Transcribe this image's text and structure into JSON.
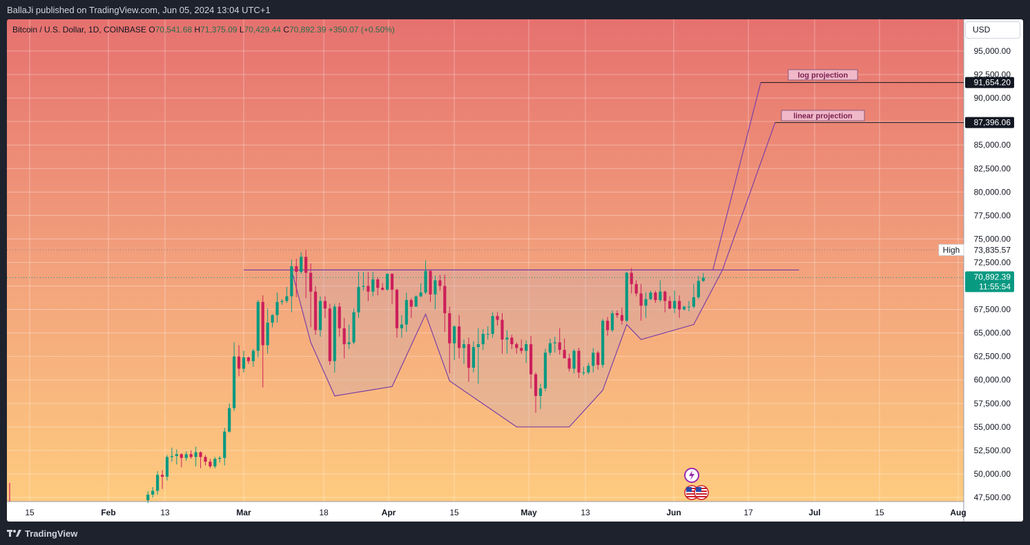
{
  "header": {
    "published_text": "BallaJi published on TradingView.com, Jun 05, 2024 13:04 UTC+1"
  },
  "footer": {
    "brand": "TradingView"
  },
  "legend": {
    "symbol": "Bitcoin / U.S. Dollar, 1D, COINBASE",
    "o_label": "O",
    "o_value": "70,541.68",
    "h_label": "H",
    "h_value": "71,375.09",
    "l_label": "L",
    "l_value": "70,429.44",
    "c_label": "C",
    "c_value": "70,892.39",
    "change": "+350.07 (+0.50%)"
  },
  "currency_button": "USD",
  "price_scale": {
    "ticks": [
      "95,000.00",
      "92,500.00",
      "90,000.00",
      "87,500.00",
      "85,000.00",
      "82,500.00",
      "80,000.00",
      "77,500.00",
      "75,000.00",
      "72,500.00",
      "70,000.00",
      "67,500.00",
      "65,000.00",
      "62,500.00",
      "60,000.00",
      "57,500.00",
      "55,000.00",
      "52,500.00",
      "50,000.00",
      "47,500.00"
    ],
    "high_label": "High",
    "high_value": "73,835.57",
    "last_price": "70,892.39",
    "countdown": "11:55:54",
    "log_target": "91,654.20",
    "linear_target": "87,396.06"
  },
  "time_scale": {
    "ticks": [
      "15",
      "Feb",
      "13",
      "Mar",
      "18",
      "Apr",
      "15",
      "May",
      "13",
      "Jun",
      "17",
      "Jul",
      "15",
      "Aug"
    ]
  },
  "annotations": {
    "log_label": "log projection",
    "linear_label": "linear projection"
  },
  "colors": {
    "up": "#089981",
    "down": "#cc1f5a",
    "pattern_line": "#7b3fa6",
    "bg_top": "#e6716f",
    "bg_bottom": "#fecb7f"
  },
  "chart_data": {
    "type": "candlestick",
    "title": "Bitcoin / U.S. Dollar, 1D, COINBASE",
    "y_scale": "linear",
    "ylim": [
      47500,
      95000
    ],
    "candles": [
      {
        "date": "2024-02-10",
        "o": 47200,
        "h": 48150,
        "l": 46900,
        "c": 47800
      },
      {
        "date": "2024-02-11",
        "o": 47800,
        "h": 48600,
        "l": 47500,
        "c": 48200
      },
      {
        "date": "2024-02-12",
        "o": 48200,
        "h": 50300,
        "l": 47800,
        "c": 49900
      },
      {
        "date": "2024-02-13",
        "o": 49900,
        "h": 50400,
        "l": 48400,
        "c": 49700
      },
      {
        "date": "2024-02-14",
        "o": 49700,
        "h": 52000,
        "l": 49300,
        "c": 51800
      },
      {
        "date": "2024-02-15",
        "o": 51800,
        "h": 52800,
        "l": 51300,
        "c": 51900
      },
      {
        "date": "2024-02-16",
        "o": 51900,
        "h": 52600,
        "l": 51000,
        "c": 52100
      },
      {
        "date": "2024-02-17",
        "o": 52100,
        "h": 52200,
        "l": 50700,
        "c": 51700
      },
      {
        "date": "2024-02-18",
        "o": 51700,
        "h": 52400,
        "l": 51400,
        "c": 52100
      },
      {
        "date": "2024-02-19",
        "o": 52100,
        "h": 52500,
        "l": 51600,
        "c": 51800
      },
      {
        "date": "2024-02-20",
        "o": 51800,
        "h": 52900,
        "l": 50800,
        "c": 52300
      },
      {
        "date": "2024-02-21",
        "o": 52300,
        "h": 52400,
        "l": 50600,
        "c": 51800
      },
      {
        "date": "2024-02-22",
        "o": 51800,
        "h": 52000,
        "l": 50900,
        "c": 51300
      },
      {
        "date": "2024-02-23",
        "o": 51300,
        "h": 51600,
        "l": 50600,
        "c": 50800
      },
      {
        "date": "2024-02-24",
        "o": 50800,
        "h": 51800,
        "l": 50600,
        "c": 51600
      },
      {
        "date": "2024-02-25",
        "o": 51600,
        "h": 51900,
        "l": 51200,
        "c": 51700
      },
      {
        "date": "2024-02-26",
        "o": 51700,
        "h": 54900,
        "l": 50900,
        "c": 54500
      },
      {
        "date": "2024-02-27",
        "o": 54500,
        "h": 57500,
        "l": 54400,
        "c": 57000
      },
      {
        "date": "2024-02-28",
        "o": 57000,
        "h": 64000,
        "l": 56700,
        "c": 62500
      },
      {
        "date": "2024-02-29",
        "o": 62500,
        "h": 63700,
        "l": 60400,
        "c": 61200
      },
      {
        "date": "2024-03-01",
        "o": 61200,
        "h": 63100,
        "l": 60800,
        "c": 62400
      },
      {
        "date": "2024-03-02",
        "o": 62400,
        "h": 62500,
        "l": 61700,
        "c": 62000
      },
      {
        "date": "2024-03-03",
        "o": 62000,
        "h": 63300,
        "l": 61400,
        "c": 63100
      },
      {
        "date": "2024-03-04",
        "o": 63100,
        "h": 68500,
        "l": 62400,
        "c": 68300
      },
      {
        "date": "2024-03-05",
        "o": 68300,
        "h": 69000,
        "l": 59200,
        "c": 63700
      },
      {
        "date": "2024-03-06",
        "o": 63700,
        "h": 67600,
        "l": 62800,
        "c": 66100
      },
      {
        "date": "2024-03-07",
        "o": 66100,
        "h": 67000,
        "l": 65600,
        "c": 66900
      },
      {
        "date": "2024-03-08",
        "o": 66900,
        "h": 69300,
        "l": 66100,
        "c": 68300
      },
      {
        "date": "2024-03-09",
        "o": 68300,
        "h": 68600,
        "l": 68000,
        "c": 68400
      },
      {
        "date": "2024-03-10",
        "o": 68400,
        "h": 69900,
        "l": 68200,
        "c": 68900
      },
      {
        "date": "2024-03-11",
        "o": 68900,
        "h": 72800,
        "l": 67200,
        "c": 72100
      },
      {
        "date": "2024-03-12",
        "o": 72100,
        "h": 72900,
        "l": 68800,
        "c": 71500
      },
      {
        "date": "2024-03-13",
        "o": 71500,
        "h": 73600,
        "l": 71300,
        "c": 73100
      },
      {
        "date": "2024-03-14",
        "o": 73100,
        "h": 73835.57,
        "l": 68700,
        "c": 71400
      },
      {
        "date": "2024-03-15",
        "o": 71400,
        "h": 72400,
        "l": 65600,
        "c": 69400
      },
      {
        "date": "2024-03-16",
        "o": 69400,
        "h": 70000,
        "l": 64800,
        "c": 65300
      },
      {
        "date": "2024-03-17",
        "o": 65300,
        "h": 68900,
        "l": 64600,
        "c": 68400
      },
      {
        "date": "2024-03-18",
        "o": 68400,
        "h": 68900,
        "l": 66600,
        "c": 67600
      },
      {
        "date": "2024-03-19",
        "o": 67600,
        "h": 68100,
        "l": 61600,
        "c": 62000
      },
      {
        "date": "2024-03-20",
        "o": 62000,
        "h": 68100,
        "l": 60800,
        "c": 67800
      },
      {
        "date": "2024-03-21",
        "o": 67800,
        "h": 68200,
        "l": 64600,
        "c": 65500
      },
      {
        "date": "2024-03-22",
        "o": 65500,
        "h": 66600,
        "l": 62300,
        "c": 63800
      },
      {
        "date": "2024-03-23",
        "o": 63800,
        "h": 65900,
        "l": 63300,
        "c": 64000
      },
      {
        "date": "2024-03-24",
        "o": 64000,
        "h": 67600,
        "l": 63800,
        "c": 67200
      },
      {
        "date": "2024-03-25",
        "o": 67200,
        "h": 71500,
        "l": 66600,
        "c": 69900
      },
      {
        "date": "2024-03-26",
        "o": 69900,
        "h": 71500,
        "l": 69500,
        "c": 70000
      },
      {
        "date": "2024-03-27",
        "o": 70000,
        "h": 71500,
        "l": 68400,
        "c": 69400
      },
      {
        "date": "2024-03-28",
        "o": 69400,
        "h": 71500,
        "l": 68900,
        "c": 70700
      },
      {
        "date": "2024-03-29",
        "o": 70700,
        "h": 70900,
        "l": 69000,
        "c": 69800
      },
      {
        "date": "2024-03-30",
        "o": 69800,
        "h": 70300,
        "l": 69500,
        "c": 69600
      },
      {
        "date": "2024-03-31",
        "o": 69600,
        "h": 71300,
        "l": 69500,
        "c": 71300
      },
      {
        "date": "2024-04-01",
        "o": 71300,
        "h": 71300,
        "l": 68100,
        "c": 69600
      },
      {
        "date": "2024-04-02",
        "o": 69600,
        "h": 69700,
        "l": 64500,
        "c": 65500
      },
      {
        "date": "2024-04-03",
        "o": 65500,
        "h": 66900,
        "l": 64500,
        "c": 65900
      },
      {
        "date": "2024-04-04",
        "o": 65900,
        "h": 69300,
        "l": 65100,
        "c": 68500
      },
      {
        "date": "2024-04-05",
        "o": 68500,
        "h": 68700,
        "l": 66600,
        "c": 67800
      },
      {
        "date": "2024-04-06",
        "o": 67800,
        "h": 69000,
        "l": 67800,
        "c": 68900
      },
      {
        "date": "2024-04-07",
        "o": 68900,
        "h": 70300,
        "l": 68800,
        "c": 69300
      },
      {
        "date": "2024-04-08",
        "o": 69300,
        "h": 72700,
        "l": 69100,
        "c": 71600
      },
      {
        "date": "2024-04-09",
        "o": 71600,
        "h": 71700,
        "l": 68300,
        "c": 69100
      },
      {
        "date": "2024-04-10",
        "o": 69100,
        "h": 71100,
        "l": 67500,
        "c": 70600
      },
      {
        "date": "2024-04-11",
        "o": 70600,
        "h": 71200,
        "l": 69500,
        "c": 70000
      },
      {
        "date": "2024-04-12",
        "o": 70000,
        "h": 71200,
        "l": 65100,
        "c": 67100
      },
      {
        "date": "2024-04-13",
        "o": 67100,
        "h": 67800,
        "l": 60700,
        "c": 63900
      },
      {
        "date": "2024-04-14",
        "o": 63900,
        "h": 65800,
        "l": 62100,
        "c": 65700
      },
      {
        "date": "2024-04-15",
        "o": 65700,
        "h": 66900,
        "l": 62300,
        "c": 63400
      },
      {
        "date": "2024-04-16",
        "o": 63400,
        "h": 64300,
        "l": 61700,
        "c": 63800
      },
      {
        "date": "2024-04-17",
        "o": 63800,
        "h": 64500,
        "l": 59800,
        "c": 61300
      },
      {
        "date": "2024-04-18",
        "o": 61300,
        "h": 64100,
        "l": 60800,
        "c": 63500
      },
      {
        "date": "2024-04-19",
        "o": 63500,
        "h": 65500,
        "l": 59600,
        "c": 63800
      },
      {
        "date": "2024-04-20",
        "o": 63800,
        "h": 65400,
        "l": 63200,
        "c": 64900
      },
      {
        "date": "2024-04-21",
        "o": 64900,
        "h": 65700,
        "l": 64300,
        "c": 64900
      },
      {
        "date": "2024-04-22",
        "o": 64900,
        "h": 67200,
        "l": 64500,
        "c": 66800
      },
      {
        "date": "2024-04-23",
        "o": 66800,
        "h": 67200,
        "l": 65800,
        "c": 66400
      },
      {
        "date": "2024-04-24",
        "o": 66400,
        "h": 67100,
        "l": 62800,
        "c": 64300
      },
      {
        "date": "2024-04-25",
        "o": 64300,
        "h": 65300,
        "l": 62800,
        "c": 64500
      },
      {
        "date": "2024-04-26",
        "o": 64500,
        "h": 64800,
        "l": 63300,
        "c": 63800
      },
      {
        "date": "2024-04-27",
        "o": 63800,
        "h": 64000,
        "l": 62800,
        "c": 63400
      },
      {
        "date": "2024-04-28",
        "o": 63400,
        "h": 64300,
        "l": 62800,
        "c": 63100
      },
      {
        "date": "2024-04-29",
        "o": 63100,
        "h": 64200,
        "l": 61800,
        "c": 63800
      },
      {
        "date": "2024-04-30",
        "o": 63800,
        "h": 64700,
        "l": 59100,
        "c": 60600
      },
      {
        "date": "2024-05-01",
        "o": 60600,
        "h": 60800,
        "l": 56500,
        "c": 58300
      },
      {
        "date": "2024-05-02",
        "o": 58300,
        "h": 59600,
        "l": 56900,
        "c": 59100
      },
      {
        "date": "2024-05-03",
        "o": 59100,
        "h": 63300,
        "l": 58800,
        "c": 62900
      },
      {
        "date": "2024-05-04",
        "o": 62900,
        "h": 64400,
        "l": 62600,
        "c": 63900
      },
      {
        "date": "2024-05-05",
        "o": 63900,
        "h": 64600,
        "l": 62900,
        "c": 64000
      },
      {
        "date": "2024-05-06",
        "o": 64000,
        "h": 65500,
        "l": 62700,
        "c": 63200
      },
      {
        "date": "2024-05-07",
        "o": 63200,
        "h": 64400,
        "l": 62300,
        "c": 62300
      },
      {
        "date": "2024-05-08",
        "o": 62300,
        "h": 62800,
        "l": 60900,
        "c": 61200
      },
      {
        "date": "2024-05-09",
        "o": 61200,
        "h": 63300,
        "l": 60700,
        "c": 63100
      },
      {
        "date": "2024-05-10",
        "o": 63100,
        "h": 63400,
        "l": 60200,
        "c": 60800
      },
      {
        "date": "2024-05-11",
        "o": 60800,
        "h": 61400,
        "l": 60500,
        "c": 60800
      },
      {
        "date": "2024-05-12",
        "o": 60800,
        "h": 61800,
        "l": 60600,
        "c": 61500
      },
      {
        "date": "2024-05-13",
        "o": 61500,
        "h": 63400,
        "l": 60800,
        "c": 62900
      },
      {
        "date": "2024-05-14",
        "o": 62900,
        "h": 63100,
        "l": 61100,
        "c": 61600
      },
      {
        "date": "2024-05-15",
        "o": 61600,
        "h": 66500,
        "l": 61300,
        "c": 66300
      },
      {
        "date": "2024-05-16",
        "o": 66300,
        "h": 66700,
        "l": 64700,
        "c": 65300
      },
      {
        "date": "2024-05-17",
        "o": 65300,
        "h": 67400,
        "l": 65100,
        "c": 67100
      },
      {
        "date": "2024-05-18",
        "o": 67100,
        "h": 67400,
        "l": 66600,
        "c": 66900
      },
      {
        "date": "2024-05-19",
        "o": 66900,
        "h": 67700,
        "l": 65900,
        "c": 66300
      },
      {
        "date": "2024-05-20",
        "o": 66300,
        "h": 71500,
        "l": 66100,
        "c": 71400
      },
      {
        "date": "2024-05-21",
        "o": 71400,
        "h": 71900,
        "l": 69200,
        "c": 70200
      },
      {
        "date": "2024-05-22",
        "o": 70200,
        "h": 70600,
        "l": 68900,
        "c": 69200
      },
      {
        "date": "2024-05-23",
        "o": 69200,
        "h": 70200,
        "l": 66300,
        "c": 67900
      },
      {
        "date": "2024-05-24",
        "o": 67900,
        "h": 69300,
        "l": 66600,
        "c": 68600
      },
      {
        "date": "2024-05-25",
        "o": 68600,
        "h": 69500,
        "l": 68500,
        "c": 69300
      },
      {
        "date": "2024-05-26",
        "o": 69300,
        "h": 69500,
        "l": 68200,
        "c": 68500
      },
      {
        "date": "2024-05-27",
        "o": 68500,
        "h": 70600,
        "l": 68300,
        "c": 69400
      },
      {
        "date": "2024-05-28",
        "o": 69400,
        "h": 69500,
        "l": 67200,
        "c": 68400
      },
      {
        "date": "2024-05-29",
        "o": 68400,
        "h": 68900,
        "l": 67500,
        "c": 67600
      },
      {
        "date": "2024-05-30",
        "o": 67600,
        "h": 69500,
        "l": 67100,
        "c": 68400
      },
      {
        "date": "2024-05-31",
        "o": 68400,
        "h": 69000,
        "l": 66600,
        "c": 67500
      },
      {
        "date": "2024-06-01",
        "o": 67500,
        "h": 67900,
        "l": 67400,
        "c": 67800
      },
      {
        "date": "2024-06-02",
        "o": 67800,
        "h": 68400,
        "l": 67300,
        "c": 67800
      },
      {
        "date": "2024-06-03",
        "o": 67800,
        "h": 70200,
        "l": 67600,
        "c": 68800
      },
      {
        "date": "2024-06-04",
        "o": 68800,
        "h": 71100,
        "l": 68600,
        "c": 70541.68
      },
      {
        "date": "2024-06-05",
        "o": 70541.68,
        "h": 71375.09,
        "l": 70429.44,
        "c": 70892.39
      }
    ],
    "pattern": {
      "neckline": [
        {
          "date": "2024-03-01",
          "price": 71700
        },
        {
          "date": "2024-06-07",
          "price": 71700
        }
      ],
      "outline": [
        {
          "date": "2024-03-11",
          "price": 71700
        },
        {
          "date": "2024-03-15",
          "price": 64000
        },
        {
          "date": "2024-03-20",
          "price": 58300
        },
        {
          "date": "2024-04-01",
          "price": 59300
        },
        {
          "date": "2024-04-08",
          "price": 67000
        },
        {
          "date": "2024-04-13",
          "price": 59900
        },
        {
          "date": "2024-04-27",
          "price": 55000
        },
        {
          "date": "2024-05-08",
          "price": 55000
        },
        {
          "date": "2024-05-15",
          "price": 58900
        },
        {
          "date": "2024-05-20",
          "price": 65900
        },
        {
          "date": "2024-05-23",
          "price": 64300
        },
        {
          "date": "2024-06-03",
          "price": 65900
        },
        {
          "date": "2024-06-09",
          "price": 71700
        }
      ],
      "log_projection": {
        "from_date": "2024-06-07",
        "from_price": 71700,
        "to_date": "2024-06-17",
        "to_price": 91654.2,
        "end_date": "2024-06-25"
      },
      "linear_projection": {
        "from_date": "2024-06-09",
        "from_price": 71700,
        "to_date": "2024-06-20",
        "to_price": 87396.06,
        "end_date": "2024-06-25"
      }
    },
    "high": 73835.57,
    "last": 70892.39
  }
}
